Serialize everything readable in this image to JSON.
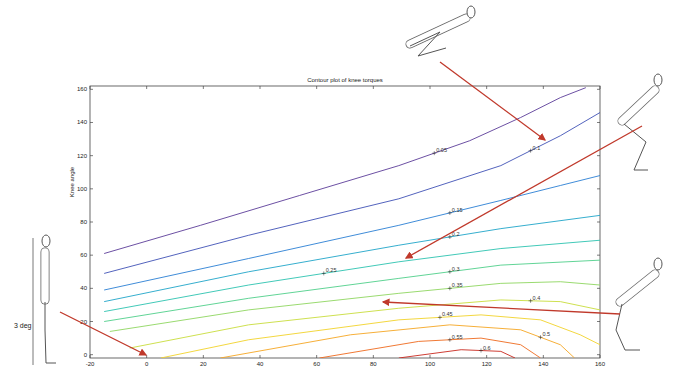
{
  "chart_data": {
    "type": "contour",
    "title": "Contour plot of knee torques",
    "y_label": "Knee angle",
    "annotation": "3 deg",
    "xlim": [
      -20,
      160
    ],
    "xticks": [
      -20,
      0,
      20,
      40,
      60,
      80,
      100,
      120,
      140,
      160
    ],
    "ylim": [
      -2,
      162
    ],
    "yticks": [
      0,
      20,
      40,
      60,
      80,
      100,
      120,
      140,
      160
    ],
    "series": [
      {
        "level": 0.05,
        "color": "#5b3c99",
        "x": [
          -15,
          19,
          54,
          89,
          114,
          132,
          146,
          155
        ],
        "y": [
          61,
          78,
          96,
          114,
          129,
          143,
          155,
          161
        ]
      },
      {
        "level": 0.1,
        "color": "#3f51b5",
        "x": [
          -15,
          36,
          89,
          125,
          146,
          160
        ],
        "y": [
          49,
          72,
          94,
          114,
          132,
          146
        ]
      },
      {
        "level": 0.15,
        "color": "#2a7fd4",
        "x": [
          -15,
          36,
          89,
          125,
          146,
          160
        ],
        "y": [
          39,
          58,
          78,
          93,
          102,
          108
        ]
      },
      {
        "level": 0.2,
        "color": "#1fa5c8",
        "x": [
          -15,
          36,
          89,
          125,
          160
        ],
        "y": [
          32,
          50,
          66,
          76,
          84
        ]
      },
      {
        "level": 0.25,
        "color": "#2cc3b0",
        "x": [
          -15,
          36,
          89,
          125,
          160
        ],
        "y": [
          26,
          42,
          56,
          64,
          69
        ]
      },
      {
        "level": 0.3,
        "color": "#4fcf8a",
        "x": [
          -15,
          36,
          89,
          125,
          160
        ],
        "y": [
          20,
          34,
          46,
          54,
          57
        ]
      },
      {
        "level": 0.35,
        "color": "#8ed660",
        "x": [
          -13,
          36,
          89,
          125,
          146,
          160
        ],
        "y": [
          14,
          27,
          37,
          43,
          44,
          42
        ]
      },
      {
        "level": 0.4,
        "color": "#c8dc3c",
        "x": [
          -6,
          36,
          89,
          125,
          146,
          160
        ],
        "y": [
          4,
          18,
          28,
          33,
          32,
          27
        ]
      },
      {
        "level": 0.45,
        "color": "#f2d22a",
        "x": [
          5,
          36,
          89,
          118,
          139,
          153,
          160
        ],
        "y": [
          -2,
          9,
          21,
          24,
          21,
          12,
          6
        ]
      },
      {
        "level": 0.5,
        "color": "#f5a623",
        "x": [
          26,
          72,
          107,
          132,
          146,
          151
        ],
        "y": [
          -2,
          12,
          18,
          15,
          6,
          -2
        ]
      },
      {
        "level": 0.55,
        "color": "#ee6a1e",
        "x": [
          61,
          96,
          118,
          132,
          139
        ],
        "y": [
          -2,
          8,
          10,
          6,
          -2
        ]
      },
      {
        "level": 0.6,
        "color": "#c8281e",
        "x": [
          89,
          111,
          125,
          130
        ],
        "y": [
          -2,
          3,
          2,
          -2
        ]
      }
    ]
  }
}
